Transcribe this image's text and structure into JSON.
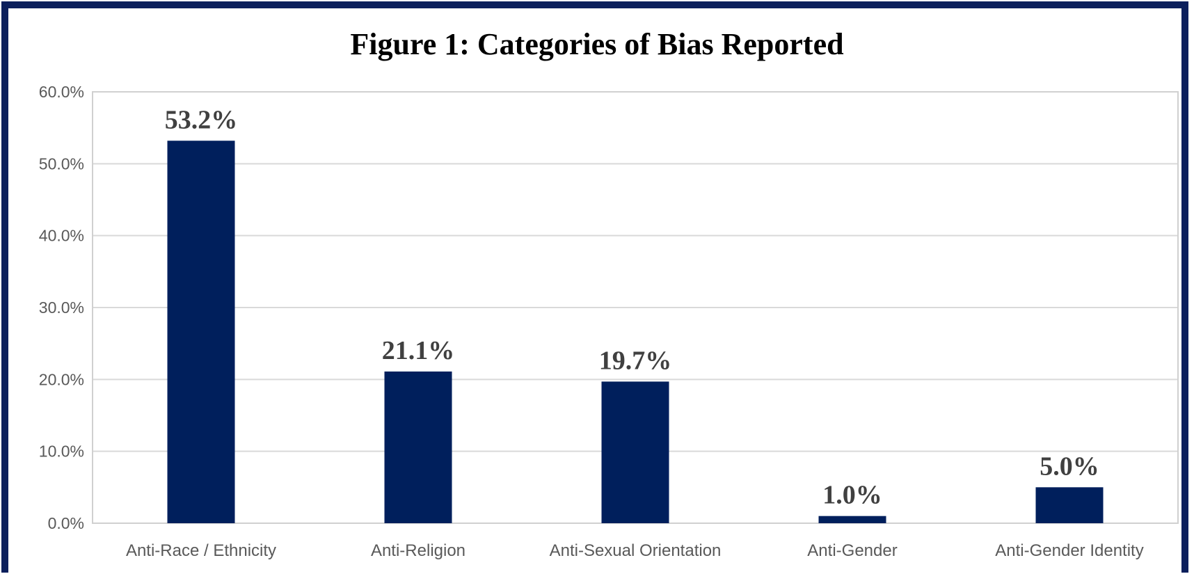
{
  "chart_data": {
    "type": "bar",
    "title": "Figure 1: Categories of Bias Reported",
    "xlabel": "",
    "ylabel": "",
    "categories": [
      "Anti-Race / Ethnicity",
      "Anti-Religion",
      "Anti-Sexual Orientation",
      "Anti-Gender",
      "Anti-Gender Identity"
    ],
    "values": [
      53.2,
      21.1,
      19.7,
      1.0,
      5.0
    ],
    "data_labels": [
      "53.2%",
      "21.1%",
      "19.7%",
      "1.0%",
      "5.0%"
    ],
    "y_ticks": [
      "0.0%",
      "10.0%",
      "20.0%",
      "30.0%",
      "40.0%",
      "50.0%",
      "60.0%"
    ],
    "ylim": [
      0,
      60
    ],
    "grid": true,
    "legend": "none",
    "bar_color": "#001f5c",
    "frame_color": "#0b1f5c"
  }
}
